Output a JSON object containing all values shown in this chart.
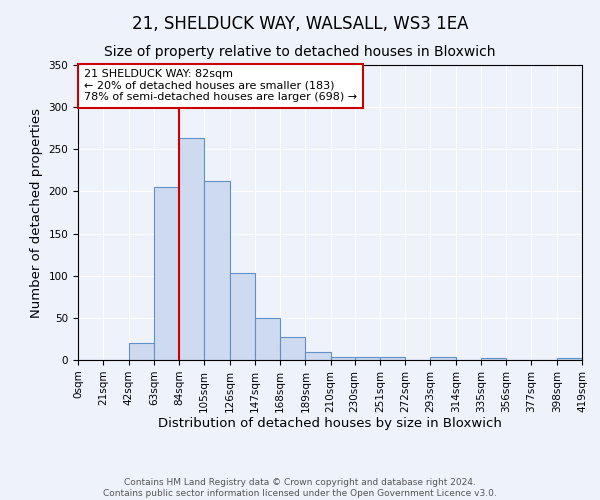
{
  "title": "21, SHELDUCK WAY, WALSALL, WS3 1EA",
  "subtitle": "Size of property relative to detached houses in Bloxwich",
  "xlabel": "Distribution of detached houses by size in Bloxwich",
  "ylabel": "Number of detached properties",
  "bin_edges": [
    0,
    21,
    42,
    63,
    84,
    105,
    126,
    147,
    168,
    189,
    210,
    230,
    251,
    272,
    293,
    314,
    335,
    356,
    377,
    398,
    419
  ],
  "bar_heights": [
    0,
    0,
    20,
    205,
    263,
    212,
    103,
    50,
    27,
    9,
    3,
    4,
    4,
    0,
    3,
    0,
    2,
    0,
    0,
    2
  ],
  "bar_color": "#cddaf0",
  "bar_edge_color": "#6090c8",
  "vline_x": 84,
  "vline_color": "#cc0000",
  "ylim": [
    0,
    350
  ],
  "annotation_title": "21 SHELDUCK WAY: 82sqm",
  "annotation_line1": "← 20% of detached houses are smaller (183)",
  "annotation_line2": "78% of semi-detached houses are larger (698) →",
  "annotation_box_color": "#ffffff",
  "annotation_box_edge": "#cc0000",
  "tick_labels": [
    "0sqm",
    "21sqm",
    "42sqm",
    "63sqm",
    "84sqm",
    "105sqm",
    "126sqm",
    "147sqm",
    "168sqm",
    "189sqm",
    "210sqm",
    "230sqm",
    "251sqm",
    "272sqm",
    "293sqm",
    "314sqm",
    "335sqm",
    "356sqm",
    "377sqm",
    "398sqm",
    "419sqm"
  ],
  "footer1": "Contains HM Land Registry data © Crown copyright and database right 2024.",
  "footer2": "Contains public sector information licensed under the Open Government Licence v3.0.",
  "bg_color": "#eef2fb",
  "grid_color": "#ffffff",
  "title_fontsize": 12,
  "subtitle_fontsize": 10,
  "axis_label_fontsize": 9.5,
  "tick_fontsize": 7.5,
  "footer_fontsize": 6.5
}
